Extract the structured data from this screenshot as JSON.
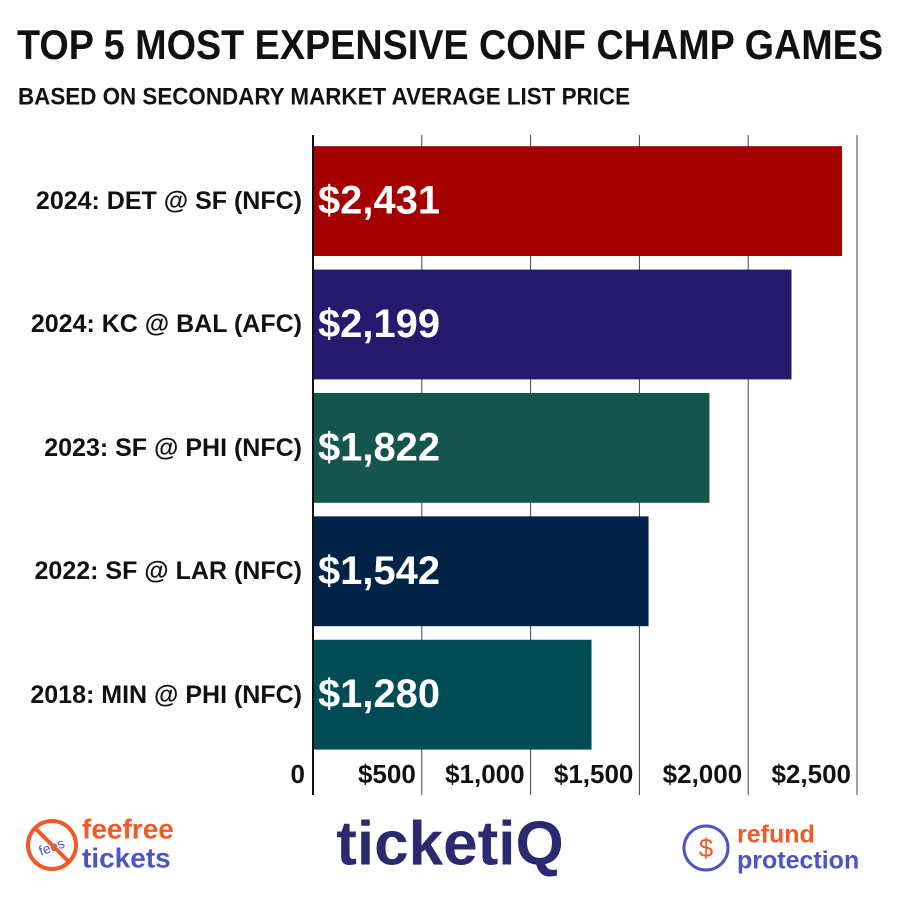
{
  "chart_data": {
    "type": "bar",
    "orientation": "horizontal",
    "title": "TOP 5 MOST EXPENSIVE CONF CHAMP GAMES",
    "subtitle": "BASED ON SECONDARY MARKET AVERAGE LIST PRICE",
    "categories": [
      "2024: DET @ SF (NFC)",
      "2024: KC @ BAL (AFC)",
      "2023: SF @ PHI (NFC)",
      "2022: SF @ LAR (NFC)",
      "2018: MIN @ PHI (NFC)"
    ],
    "values": [
      2431,
      2199,
      1822,
      1542,
      1280
    ],
    "value_labels": [
      "$2,431",
      "$2,199",
      "$1,822",
      "$1,542",
      "$1,280"
    ],
    "colors": [
      "#a50000",
      "#261a6e",
      "#14564f",
      "#012345",
      "#004c54"
    ],
    "xlim": [
      0,
      2500
    ],
    "xticks": [
      0,
      {
        "value": 500,
        "label": "$500"
      },
      {
        "value": 1000,
        "label": "$1,000"
      },
      {
        "value": 1500,
        "label": "$1,500"
      },
      {
        "value": 2000,
        "label": "$2,000"
      },
      {
        "value": 2500,
        "label": "$2,500"
      }
    ],
    "grid": true
  },
  "logos": {
    "fees": "fees",
    "feefree": "feefree",
    "tickets": "tickets",
    "brand": "ticketiQ",
    "refund": "refund",
    "protection": "protection",
    "dollar": "$"
  }
}
